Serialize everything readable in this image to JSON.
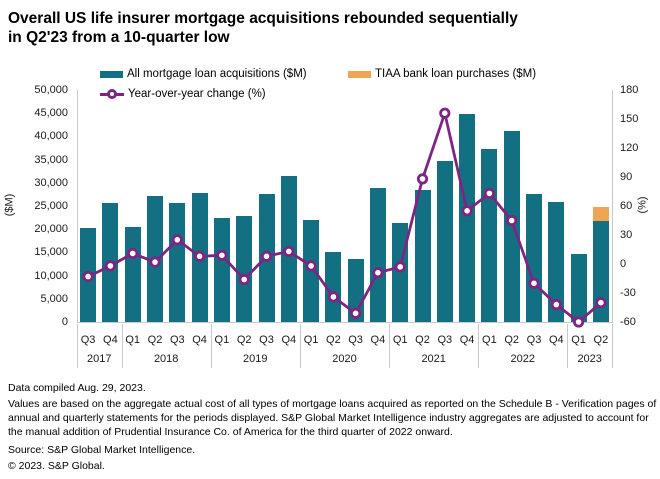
{
  "header": {
    "title_line1": "Overall US life insurer mortgage acquisitions rebounded sequentially",
    "title_line2": "in Q2'23 from a 10-quarter low"
  },
  "legend": {
    "bars_label": "All mortgage loan acquisitions ($M)",
    "tiaa_label": "TIAA bank loan purchases ($M)",
    "yoy_label": "Year-over-year change (%)"
  },
  "footer": {
    "compiled": "Data compiled Aug. 29, 2023.",
    "note": "Values are based on the aggregate actual cost of all types of mortgage loans acquired as reported on the Schedule B - Verification pages of annual and quarterly statements for the periods displayed. S&P Global Market Intelligence industry aggregates are adjusted to account for the manual addition of Prudential Insurance Co. of America for the third quarter of 2022 onward.",
    "source": "Source: S&P Global Market Intelligence.",
    "copyright": "© 2023. S&P Global."
  },
  "colors": {
    "bar_teal": "#127082",
    "tiaa_orange": "#f0a555",
    "line_purple": "#7d2583",
    "axis_gray": "#c9c9c9"
  },
  "chart_data": {
    "type": "combo-bar-line",
    "title": "Overall US life insurer mortgage acquisitions rebounded sequentially in Q2'23 from a 10-quarter low",
    "categories": [
      "Q3",
      "Q4",
      "Q1",
      "Q2",
      "Q3",
      "Q4",
      "Q1",
      "Q2",
      "Q3",
      "Q4",
      "Q1",
      "Q2",
      "Q3",
      "Q4",
      "Q1",
      "Q2",
      "Q3",
      "Q4",
      "Q1",
      "Q2",
      "Q3",
      "Q4",
      "Q1",
      "Q2"
    ],
    "year_groups": [
      {
        "year": "2017",
        "count": 2
      },
      {
        "year": "2018",
        "count": 4
      },
      {
        "year": "2019",
        "count": 4
      },
      {
        "year": "2020",
        "count": 4
      },
      {
        "year": "2021",
        "count": 4
      },
      {
        "year": "2022",
        "count": 4
      },
      {
        "year": "2023",
        "count": 2
      }
    ],
    "series": [
      {
        "name": "All mortgage loan acquisitions ($M)",
        "type": "bar",
        "axis": "left",
        "color": "#127082",
        "values": [
          20300,
          25700,
          20400,
          27200,
          25700,
          27800,
          22400,
          22900,
          27700,
          31500,
          22000,
          15100,
          13600,
          28900,
          21400,
          28400,
          34800,
          44800,
          37200,
          41200,
          27700,
          25800,
          14700,
          21800
        ]
      },
      {
        "name": "TIAA bank loan purchases ($M)",
        "type": "bar-stacked",
        "axis": "left",
        "color": "#f0a555",
        "values": [
          0,
          0,
          0,
          0,
          0,
          0,
          0,
          0,
          0,
          0,
          0,
          0,
          0,
          0,
          0,
          0,
          0,
          0,
          0,
          0,
          0,
          0,
          0,
          3100
        ]
      },
      {
        "name": "Year-over-year change (%)",
        "type": "line",
        "axis": "right",
        "color": "#7d2583",
        "values": [
          -13,
          -2,
          11,
          2,
          25,
          8,
          9,
          -16,
          8,
          13,
          -2,
          -34,
          -51,
          -9,
          -3,
          88,
          156,
          55,
          73,
          45,
          -20,
          -42,
          -60,
          -40
        ]
      }
    ],
    "left_axis": {
      "label": "($M)",
      "min": 0,
      "max": 50000,
      "step": 5000
    },
    "right_axis": {
      "label": "(%)",
      "min": -60,
      "max": 180,
      "step": 30
    },
    "grid": false,
    "legend_position": "top"
  }
}
